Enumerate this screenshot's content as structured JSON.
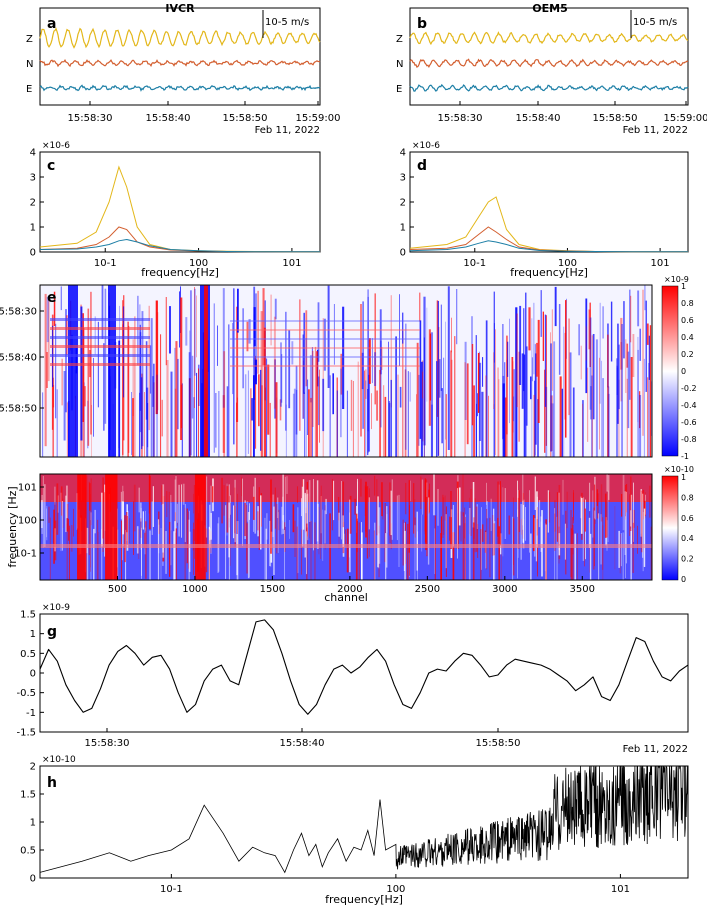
{
  "chart_data": [
    {
      "panel": "a",
      "type": "line",
      "title": "IVCR",
      "x_ticks": [
        "15:58:30",
        "15:58:40",
        "15:58:50",
        "15:59:00"
      ],
      "date_label": "Feb 11, 2022",
      "scale_label": "10-5 m/s",
      "series": [
        {
          "name": "Z",
          "color": "#e3b71a",
          "amp": 1.0,
          "freq": 0.14
        },
        {
          "name": "N",
          "color": "#d35f30",
          "amp": 0.25,
          "freq": 0.15
        },
        {
          "name": "E",
          "color": "#1d7fa6",
          "amp": 0.2,
          "freq": 0.16
        }
      ]
    },
    {
      "panel": "b",
      "type": "line",
      "title": "OEM5",
      "x_ticks": [
        "15:58:30",
        "15:58:40",
        "15:58:50",
        "15:59:00"
      ],
      "date_label": "Feb 11, 2022",
      "scale_label": "10-5 m/s",
      "series": [
        {
          "name": "Z",
          "color": "#e3b71a",
          "amp": 0.6,
          "freq": 0.14
        },
        {
          "name": "N",
          "color": "#d35f30",
          "amp": 0.35,
          "freq": 0.15
        },
        {
          "name": "E",
          "color": "#1d7fa6",
          "amp": 0.25,
          "freq": 0.16
        }
      ]
    },
    {
      "panel": "c",
      "type": "line",
      "xscale": "log",
      "xlabel": "frequency[Hz]",
      "ylim": [
        0,
        4
      ],
      "y_multiplier": "×10-6",
      "y_ticks": [
        "0",
        "1",
        "2",
        "3",
        "4"
      ],
      "x_ticks": [
        "10-1",
        "100",
        "101"
      ],
      "series": [
        {
          "color": "#e3b71a",
          "x": [
            0.02,
            0.05,
            0.08,
            0.11,
            0.14,
            0.17,
            0.22,
            0.3,
            0.5,
            1,
            2,
            5,
            10,
            20
          ],
          "values": [
            0.2,
            0.35,
            0.8,
            2.0,
            3.4,
            2.6,
            1.0,
            0.3,
            0.1,
            0.05,
            0.03,
            0.02,
            0.01,
            0.01
          ]
        },
        {
          "color": "#d35f30",
          "x": [
            0.02,
            0.05,
            0.08,
            0.11,
            0.14,
            0.17,
            0.22,
            0.3,
            0.5,
            1,
            2,
            5,
            10,
            20
          ],
          "values": [
            0.1,
            0.15,
            0.3,
            0.6,
            1.0,
            0.9,
            0.4,
            0.2,
            0.08,
            0.04,
            0.02,
            0.01,
            0.01,
            0.01
          ]
        },
        {
          "color": "#1d7fa6",
          "x": [
            0.02,
            0.05,
            0.08,
            0.11,
            0.14,
            0.17,
            0.22,
            0.3,
            0.5,
            1,
            2,
            5,
            10,
            20
          ],
          "values": [
            0.1,
            0.12,
            0.2,
            0.3,
            0.45,
            0.5,
            0.4,
            0.25,
            0.1,
            0.05,
            0.02,
            0.01,
            0.01,
            0.01
          ]
        }
      ]
    },
    {
      "panel": "d",
      "type": "line",
      "xscale": "log",
      "xlabel": "frequency[Hz]",
      "ylim": [
        0,
        4
      ],
      "y_multiplier": "×10-6",
      "y_ticks": [
        "0",
        "1",
        "2",
        "3",
        "4"
      ],
      "x_ticks": [
        "10-1",
        "100",
        "101"
      ],
      "series": [
        {
          "color": "#e3b71a",
          "x": [
            0.02,
            0.05,
            0.08,
            0.11,
            0.14,
            0.17,
            0.22,
            0.3,
            0.5,
            1,
            2,
            5,
            10,
            20
          ],
          "values": [
            0.15,
            0.3,
            0.6,
            1.4,
            2.0,
            2.2,
            0.9,
            0.3,
            0.1,
            0.05,
            0.02,
            0.01,
            0.01,
            0.01
          ]
        },
        {
          "color": "#d35f30",
          "x": [
            0.02,
            0.05,
            0.08,
            0.11,
            0.14,
            0.17,
            0.22,
            0.3,
            0.5,
            1,
            2,
            5,
            10,
            20
          ],
          "values": [
            0.1,
            0.15,
            0.3,
            0.7,
            1.0,
            0.8,
            0.5,
            0.2,
            0.08,
            0.04,
            0.02,
            0.01,
            0.01,
            0.01
          ]
        },
        {
          "color": "#1d7fa6",
          "x": [
            0.02,
            0.05,
            0.08,
            0.11,
            0.14,
            0.17,
            0.22,
            0.3,
            0.5,
            1,
            2,
            5,
            10,
            20
          ],
          "values": [
            0.05,
            0.1,
            0.2,
            0.35,
            0.45,
            0.4,
            0.3,
            0.15,
            0.06,
            0.03,
            0.02,
            0.01,
            0.01,
            0.01
          ]
        }
      ]
    },
    {
      "panel": "e",
      "type": "heatmap",
      "y_ticks": [
        "15:58:30",
        "15:58:40",
        "15:58:50"
      ],
      "colorbar_ticks": [
        "1",
        "0.8",
        "0.6",
        "0.4",
        "0.2",
        "0",
        "-0.2",
        "-0.4",
        "-0.6",
        "-0.8",
        "-1"
      ],
      "colorbar_multiplier": "×10-9",
      "colormap": [
        "#0000ff",
        "#ffffff",
        "#ff0000"
      ]
    },
    {
      "panel": "f",
      "type": "heatmap",
      "ylabel": "frequency [Hz]",
      "xlabel": "channel",
      "y_ticks": [
        "101",
        "100",
        "10-1"
      ],
      "x_ticks": [
        "500",
        "1000",
        "1500",
        "2000",
        "2500",
        "3000",
        "3500"
      ],
      "xlim": [
        0,
        3950
      ],
      "colorbar_ticks": [
        "1",
        "0.8",
        "0.6",
        "0.4",
        "0.2",
        "0"
      ],
      "colorbar_multiplier": "×10-10",
      "colormap": [
        "#0000ff",
        "#ffffff",
        "#ff0000"
      ]
    },
    {
      "panel": "g",
      "type": "line",
      "ylim": [
        -1.5,
        1.5
      ],
      "y_multiplier": "×10-9",
      "y_ticks": [
        "1.5",
        "1",
        "0.5",
        "0",
        "-0.5",
        "-1",
        "-1.5"
      ],
      "x_ticks": [
        "15:58:30",
        "15:58:40",
        "15:58:50"
      ],
      "date_label": "Feb 11, 2022",
      "series": [
        {
          "color": "#000000",
          "t": [
            0,
            1,
            2,
            3,
            4,
            5,
            6,
            7,
            8,
            9,
            10,
            11,
            12,
            13,
            14,
            15,
            16,
            17,
            18,
            19,
            20,
            21,
            22,
            23,
            24,
            25,
            26,
            27,
            28,
            29,
            30,
            31,
            32,
            33,
            34,
            35,
            36,
            37,
            38,
            39,
            40,
            41,
            42,
            43,
            44,
            45,
            46,
            47,
            48,
            49,
            50,
            51,
            52,
            53,
            54,
            55,
            56,
            57,
            58,
            59,
            60,
            61,
            62,
            63,
            64,
            65,
            66,
            67,
            68,
            69,
            70,
            71,
            72,
            73,
            74,
            75
          ],
          "values": [
            0.1,
            0.6,
            0.3,
            -0.3,
            -0.7,
            -1.0,
            -0.9,
            -0.4,
            0.2,
            0.55,
            0.7,
            0.5,
            0.2,
            0.4,
            0.45,
            0.1,
            -0.5,
            -1.0,
            -0.8,
            -0.2,
            0.1,
            0.2,
            -0.2,
            -0.3,
            0.5,
            1.3,
            1.35,
            1.1,
            0.5,
            -0.2,
            -0.8,
            -1.05,
            -0.8,
            -0.3,
            0.1,
            0.2,
            0.0,
            0.15,
            0.4,
            0.6,
            0.3,
            -0.3,
            -0.8,
            -0.9,
            -0.5,
            0.0,
            0.1,
            0.05,
            0.3,
            0.5,
            0.45,
            0.2,
            -0.1,
            -0.05,
            0.2,
            0.35,
            0.3,
            0.25,
            0.2,
            0.1,
            -0.05,
            -0.2,
            -0.45,
            -0.3,
            -0.1,
            -0.6,
            -0.7,
            -0.3,
            0.3,
            0.9,
            0.8,
            0.3,
            -0.1,
            -0.2,
            0.05,
            0.2
          ]
        }
      ]
    },
    {
      "panel": "h",
      "type": "line",
      "xscale": "log",
      "xlabel": "frequency[Hz]",
      "ylim": [
        0,
        2
      ],
      "y_multiplier": "×10-10",
      "y_ticks": [
        "2",
        "1.5",
        "1",
        "0.5",
        "0"
      ],
      "x_ticks": [
        "10-1",
        "100",
        "101"
      ],
      "series": [
        {
          "color": "#000000",
          "x": [
            0.026,
            0.04,
            0.053,
            0.066,
            0.079,
            0.1,
            0.12,
            0.14,
            0.17,
            0.2,
            0.23,
            0.26,
            0.29,
            0.32,
            0.35,
            0.38,
            0.41,
            0.44,
            0.47,
            0.5,
            0.55,
            0.6,
            0.65,
            0.7,
            0.75,
            0.8,
            0.85,
            0.9,
            1.0
          ],
          "values": [
            0.1,
            0.3,
            0.45,
            0.3,
            0.4,
            0.5,
            0.7,
            1.3,
            0.8,
            0.3,
            0.55,
            0.45,
            0.4,
            0.1,
            0.5,
            0.8,
            0.4,
            0.6,
            0.2,
            0.45,
            0.7,
            0.3,
            0.55,
            0.5,
            0.85,
            0.4,
            1.4,
            0.5,
            0.6
          ]
        }
      ]
    }
  ]
}
